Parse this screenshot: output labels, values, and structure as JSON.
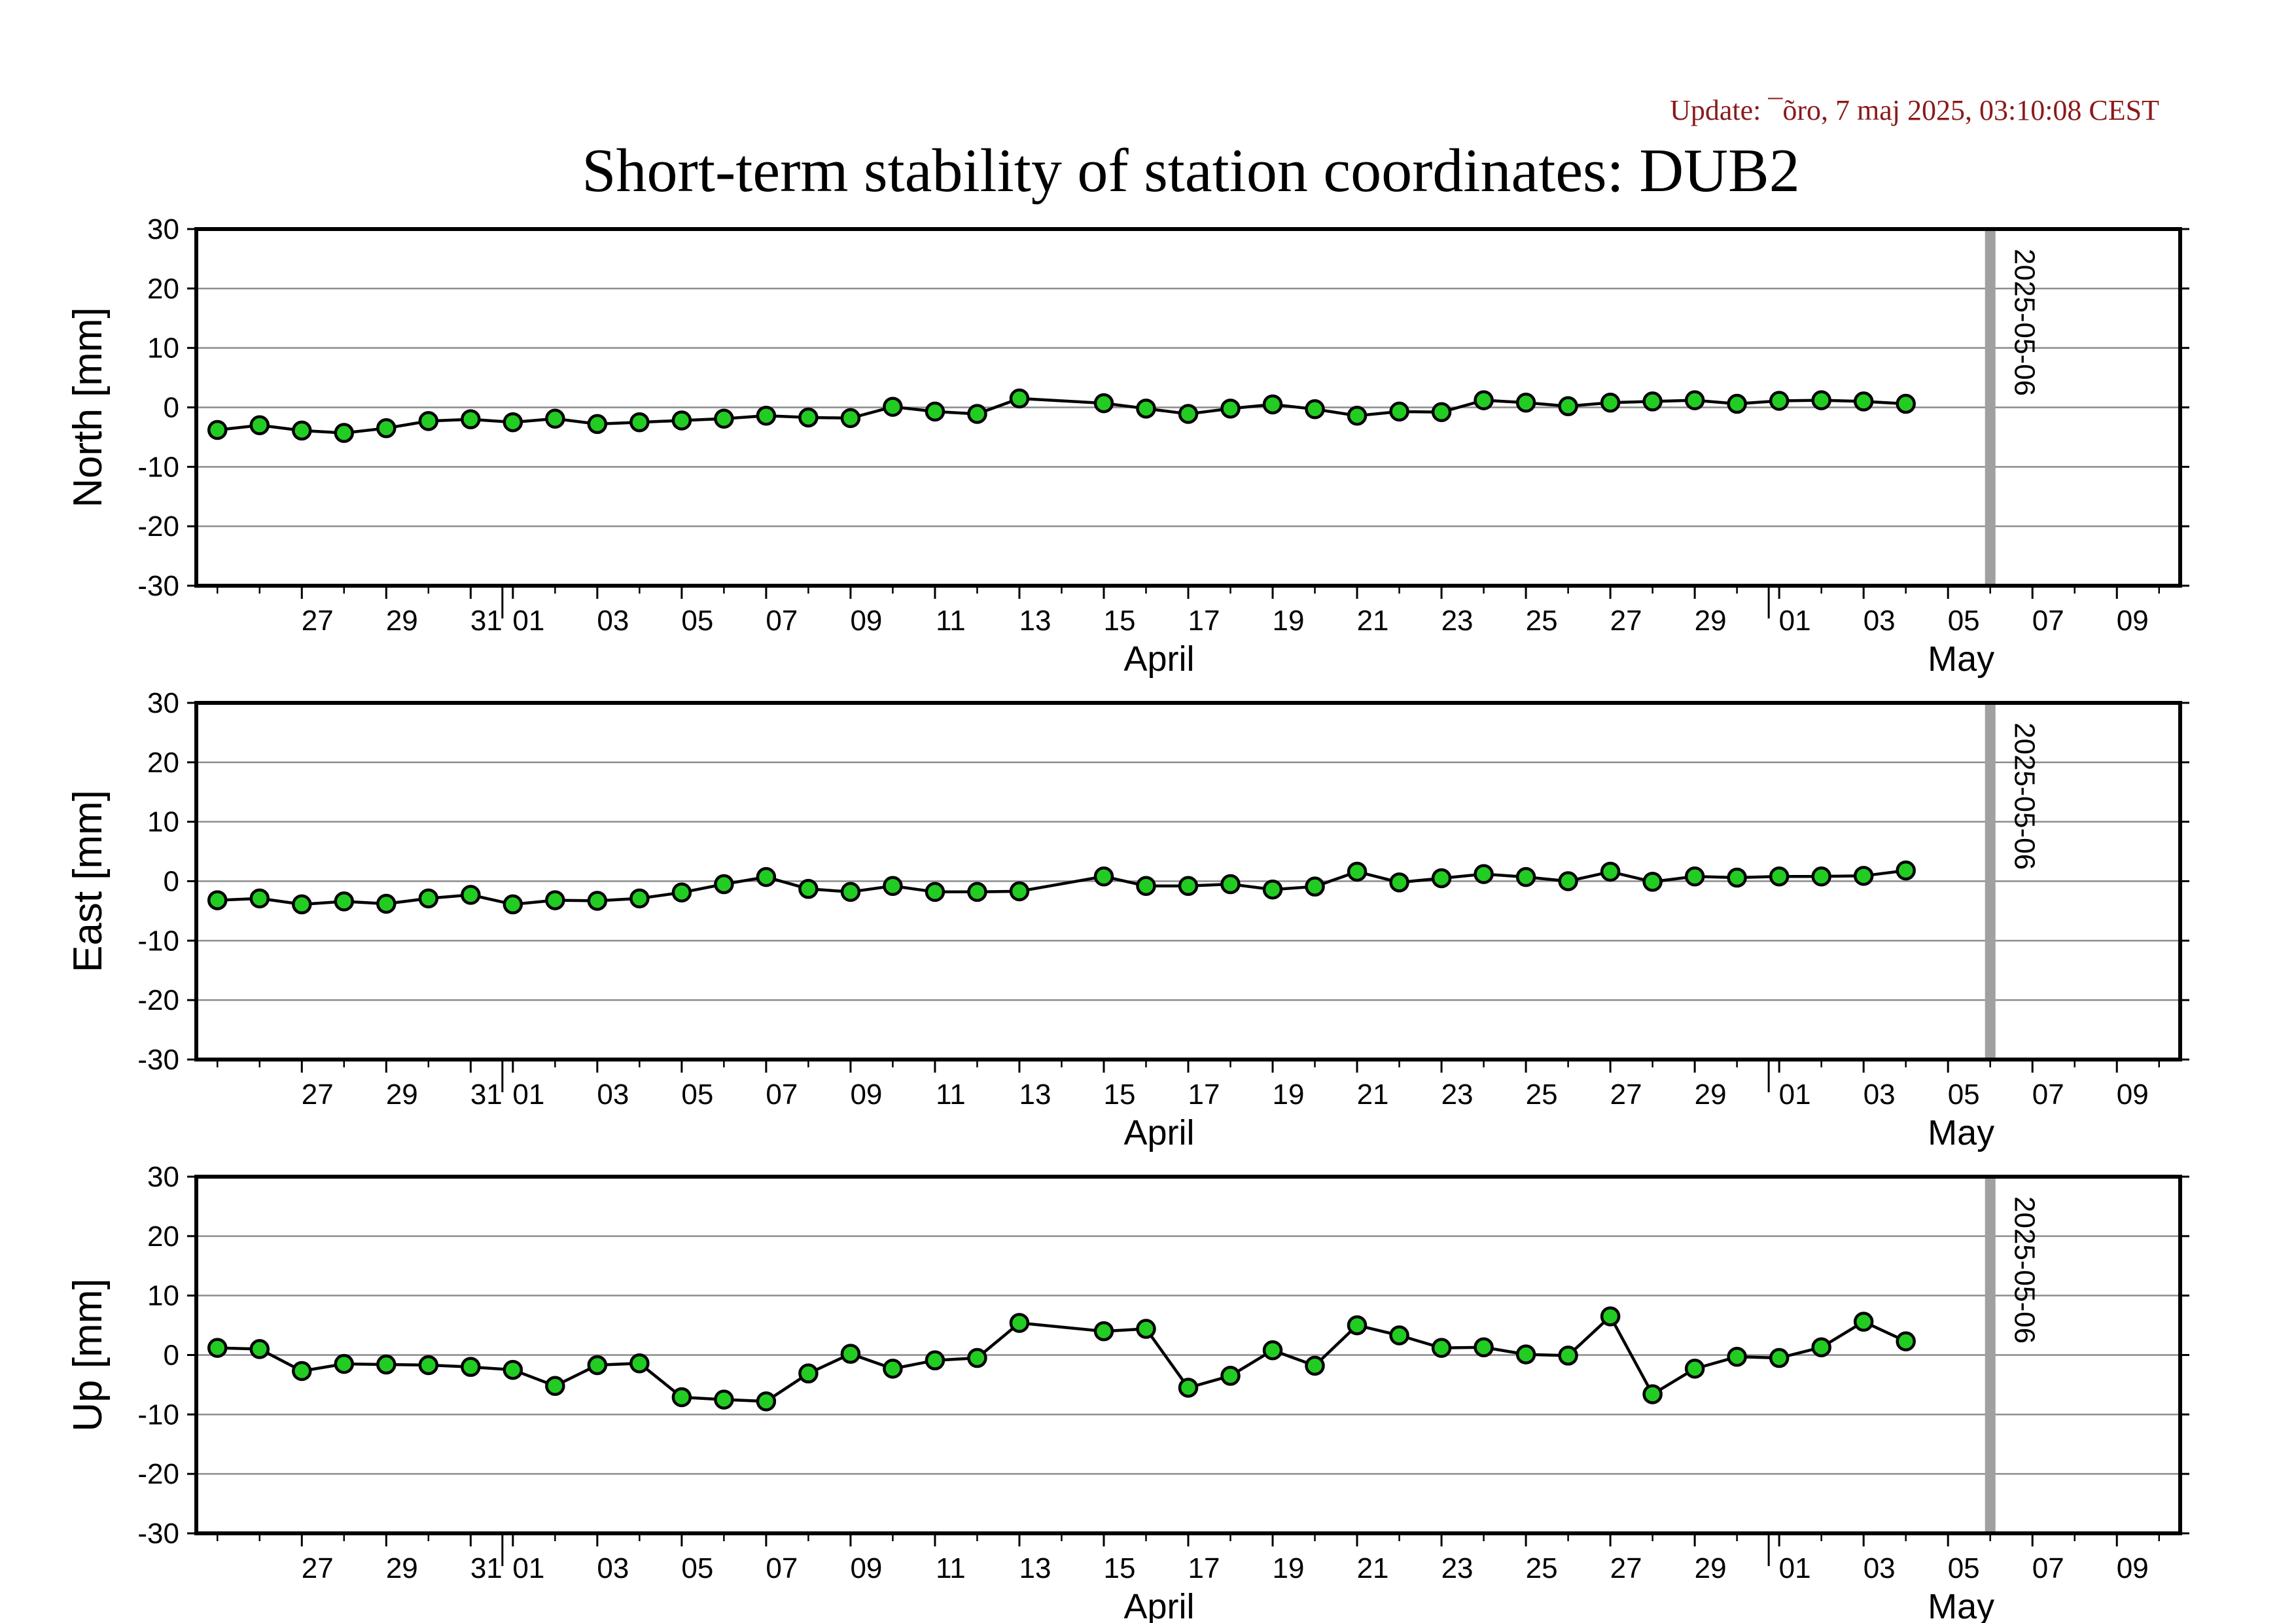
{
  "update_text": "Update: ¯õro, 7 maj 2025, 03:10:08 CEST",
  "colors": {
    "update_text": "#8b1a1a",
    "marker_fill": "#22cc22",
    "marker_edge": "#000000",
    "series_line": "#000000",
    "gridline": "#8c8c8c",
    "current_day_line": "#a0a0a0"
  },
  "chart_data": {
    "title": "Short-term stability of station coordinates: DUB2",
    "type": "line",
    "x_range": [
      "2025-03-25",
      "2025-05-10"
    ],
    "date_tick_labels": [
      "27",
      "29",
      "31",
      "01",
      "03",
      "05",
      "07",
      "09",
      "11",
      "13",
      "15",
      "17",
      "19",
      "21",
      "23",
      "25",
      "27",
      "29",
      "01",
      "03",
      "05",
      "07",
      "09"
    ],
    "month_labels": [
      "April",
      "May"
    ],
    "current_day_label": "2025-05-06",
    "dates": [
      "2025-03-25",
      "2025-03-26",
      "2025-03-27",
      "2025-03-28",
      "2025-03-29",
      "2025-03-30",
      "2025-03-31",
      "2025-04-01",
      "2025-04-02",
      "2025-04-03",
      "2025-04-04",
      "2025-04-05",
      "2025-04-06",
      "2025-04-07",
      "2025-04-08",
      "2025-04-09",
      "2025-04-10",
      "2025-04-11",
      "2025-04-12",
      "2025-04-13",
      "2025-04-15",
      "2025-04-16",
      "2025-04-17",
      "2025-04-18",
      "2025-04-19",
      "2025-04-20",
      "2025-04-21",
      "2025-04-22",
      "2025-04-23",
      "2025-04-24",
      "2025-04-25",
      "2025-04-26",
      "2025-04-27",
      "2025-04-28",
      "2025-04-29",
      "2025-04-30",
      "2025-05-01",
      "2025-05-02",
      "2025-05-03",
      "2025-05-04"
    ],
    "panels": [
      {
        "ylabel": "North [mm]",
        "ylim": [
          -30,
          30
        ],
        "yticks": [
          -30,
          -20,
          -10,
          0,
          10,
          20,
          30
        ],
        "values": [
          -3.8,
          -3.0,
          -3.9,
          -4.3,
          -3.5,
          -2.3,
          -2.0,
          -2.5,
          -1.9,
          -2.8,
          -2.5,
          -2.2,
          -1.9,
          -1.4,
          -1.7,
          -1.8,
          0.1,
          -0.7,
          -1.1,
          1.5,
          0.7,
          -0.2,
          -1.1,
          -0.2,
          0.5,
          -0.3,
          -1.4,
          -0.7,
          -0.8,
          1.2,
          0.8,
          0.2,
          0.8,
          1.0,
          1.2,
          0.6,
          1.1,
          1.2,
          1.0,
          0.6
        ]
      },
      {
        "ylabel": "East [mm]",
        "ylim": [
          -30,
          30
        ],
        "yticks": [
          -30,
          -20,
          -10,
          0,
          10,
          20,
          30
        ],
        "values": [
          -3.2,
          -2.9,
          -3.9,
          -3.4,
          -3.8,
          -2.9,
          -2.3,
          -3.9,
          -3.2,
          -3.3,
          -2.9,
          -1.9,
          -0.5,
          0.7,
          -1.3,
          -1.8,
          -0.8,
          -1.8,
          -1.8,
          -1.7,
          0.8,
          -0.8,
          -0.8,
          -0.5,
          -1.4,
          -0.9,
          1.6,
          -0.2,
          0.5,
          1.2,
          0.7,
          0.0,
          1.6,
          -0.1,
          0.8,
          0.6,
          0.8,
          0.8,
          0.9,
          1.8
        ]
      },
      {
        "ylabel": "Up [mm]",
        "ylim": [
          -30,
          30
        ],
        "yticks": [
          -30,
          -20,
          -10,
          0,
          10,
          20,
          30
        ],
        "values": [
          1.2,
          1.0,
          -2.7,
          -1.5,
          -1.6,
          -1.7,
          -2.0,
          -2.5,
          -5.2,
          -1.7,
          -1.4,
          -7.1,
          -7.5,
          -7.8,
          -3.1,
          0.2,
          -2.3,
          -0.9,
          -0.5,
          5.4,
          4.0,
          4.4,
          -5.5,
          -3.5,
          0.8,
          -1.8,
          5.0,
          3.3,
          1.2,
          1.3,
          0.1,
          -0.1,
          6.5,
          -6.6,
          -2.3,
          -0.3,
          -0.5,
          1.3,
          5.6,
          2.3
        ]
      }
    ]
  }
}
